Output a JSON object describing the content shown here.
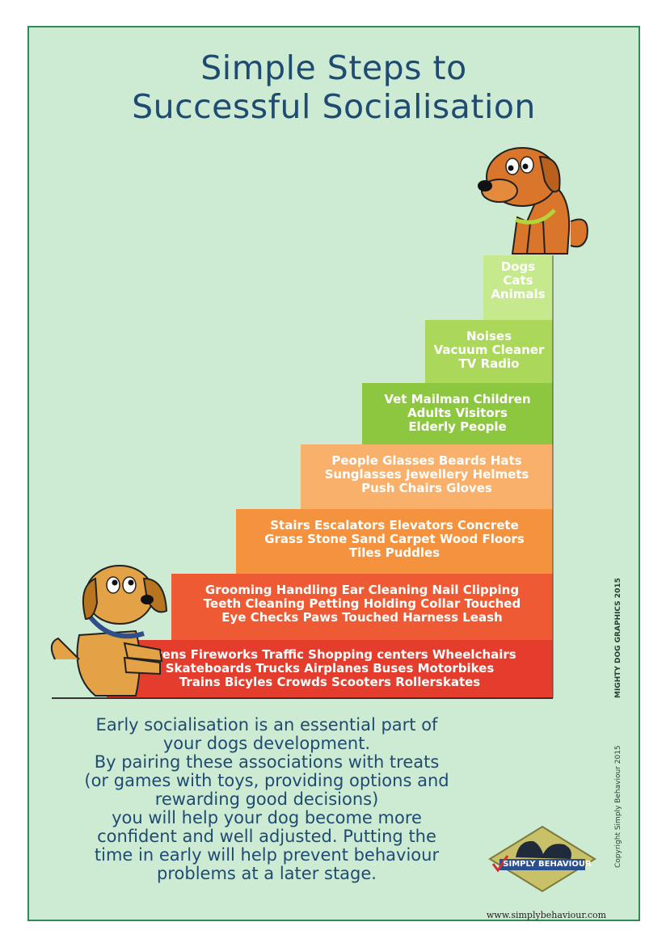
{
  "title": {
    "line1": "Simple Steps to",
    "line2": "Successful Socialisation"
  },
  "steps": [
    {
      "lines": [
        "Sirens  Fireworks  Traffic  Shopping centers  Wheelchairs",
        "Skateboards  Trucks  Airplanes  Buses  Motorbikes",
        "Trains  Bicyles  Crowds  Scooters  Rollerskates"
      ],
      "color": "#e53d2d"
    },
    {
      "lines": [
        "Grooming  Handling  Ear Cleaning  Nail Clipping",
        "Teeth Cleaning  Petting  Holding  Collar Touched",
        "Eye Checks  Paws Touched  Harness  Leash"
      ],
      "color": "#ee5a34"
    },
    {
      "lines": [
        "Stairs  Escalators  Elevators  Concrete",
        "Grass  Stone  Sand  Carpet  Wood Floors",
        "Tiles  Puddles"
      ],
      "color": "#f4923e"
    },
    {
      "lines": [
        "People  Glasses  Beards  Hats",
        "Sunglasses  Jewellery  Helmets",
        "Push Chairs  Gloves"
      ],
      "color": "#f9b06a"
    },
    {
      "lines": [
        "Vet  Mailman  Children",
        "Adults  Visitors",
        "Elderly People"
      ],
      "color": "#8dc63f"
    },
    {
      "lines": [
        "Noises",
        "Vacuum Cleaner",
        "TV  Radio"
      ],
      "color": "#abd85a"
    },
    {
      "lines": [
        "Dogs",
        "Cats",
        "Animals"
      ],
      "color": "#c6e98d"
    }
  ],
  "body_text": {
    "lines": [
      "Early socialisation is an essential part of",
      "your dogs development.",
      "By pairing these associations with treats",
      "(or games with toys, providing options and",
      "rewarding good decisions)",
      "you will help your dog become more",
      "confident and well adjusted. Putting the",
      "time in early will help prevent behaviour",
      "problems at a later stage."
    ]
  },
  "credit": "MIGHTY DOG GRAPHICS 2015",
  "copyright": "Copyright Simply Behaviour 2015",
  "logo_text": "SIMPLY BEHAVIOUR",
  "url": "www.simplybehaviour.com"
}
